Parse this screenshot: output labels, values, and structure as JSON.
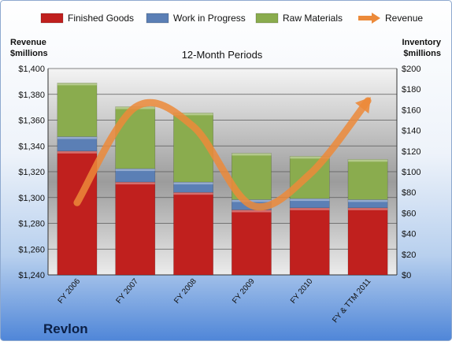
{
  "chart_data": {
    "type": "bar",
    "stacked": true,
    "subtitle": "12-Month Periods",
    "company": "Revlon",
    "left_axis": {
      "title_line1": "Revenue",
      "title_line2": "$millions",
      "range": [
        1240,
        1400
      ],
      "step": 20,
      "format": "dollar"
    },
    "right_axis": {
      "title_line1": "Inventory",
      "title_line2": "$millions",
      "range": [
        0,
        200
      ],
      "step": 20,
      "format": "dollar"
    },
    "categories": [
      "FY 2006",
      "FY 2007",
      "FY 2008",
      "FY 2009",
      "FY 2010",
      "FY & TTM 2011"
    ],
    "series": [
      {
        "name": "Finished Goods",
        "type": "bar",
        "axis": "right",
        "color": "#c0201e",
        "values": [
          120,
          90,
          80,
          63,
          65,
          65
        ]
      },
      {
        "name": "Work in Progress",
        "type": "bar",
        "axis": "right",
        "color": "#5b7fb5",
        "values": [
          14,
          13,
          10,
          10,
          9,
          8
        ]
      },
      {
        "name": "Raw Materials",
        "type": "bar",
        "axis": "right",
        "color": "#8aac4e",
        "values": [
          52,
          60,
          67,
          45,
          41,
          39
        ]
      },
      {
        "name": "Revenue",
        "type": "line",
        "axis": "left",
        "color": "#ec8a3a",
        "values": [
          1296,
          1370,
          1355,
          1294,
          1318,
          1375
        ]
      }
    ],
    "grid": true,
    "legend_position": "top"
  }
}
